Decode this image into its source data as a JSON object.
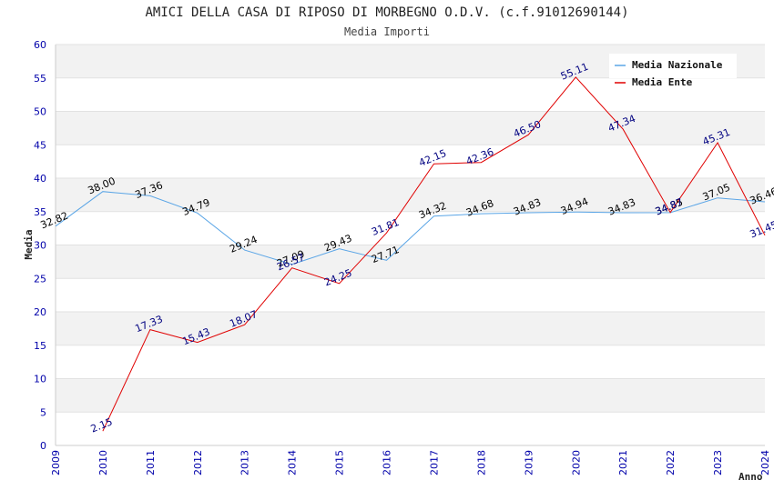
{
  "chart_data": {
    "type": "line",
    "title": "AMICI DELLA CASA DI RIPOSO DI MORBEGNO O.D.V. (c.f.91012690144)",
    "subtitle": "Media Importi",
    "xlabel": "Anno",
    "ylabel": "Media",
    "ylim": [
      0,
      60
    ],
    "yticks": [
      0,
      5,
      10,
      15,
      20,
      25,
      30,
      35,
      40,
      45,
      50,
      55,
      60
    ],
    "x": [
      "2009",
      "2010",
      "2011",
      "2012",
      "2013",
      "2014",
      "2015",
      "2016",
      "2017",
      "2018",
      "2019",
      "2020",
      "2021",
      "2022",
      "2023",
      "2024"
    ],
    "grid": "horizontal alternating bands",
    "legend_position": "top-right",
    "series": [
      {
        "name": "Media Nazionale",
        "color": "#5aa5e6",
        "label_color": "#000000",
        "values": [
          32.82,
          38.0,
          37.36,
          34.79,
          29.24,
          27.09,
          29.43,
          27.71,
          34.32,
          34.68,
          34.83,
          34.94,
          34.83,
          34.85,
          37.05,
          36.46
        ]
      },
      {
        "name": "Media Ente",
        "color": "#e00000",
        "label_color": "#000080",
        "values": [
          null,
          2.15,
          17.33,
          15.43,
          18.07,
          26.57,
          24.25,
          31.81,
          42.15,
          42.36,
          46.5,
          55.11,
          47.34,
          34.87,
          45.31,
          31.45
        ]
      }
    ]
  }
}
